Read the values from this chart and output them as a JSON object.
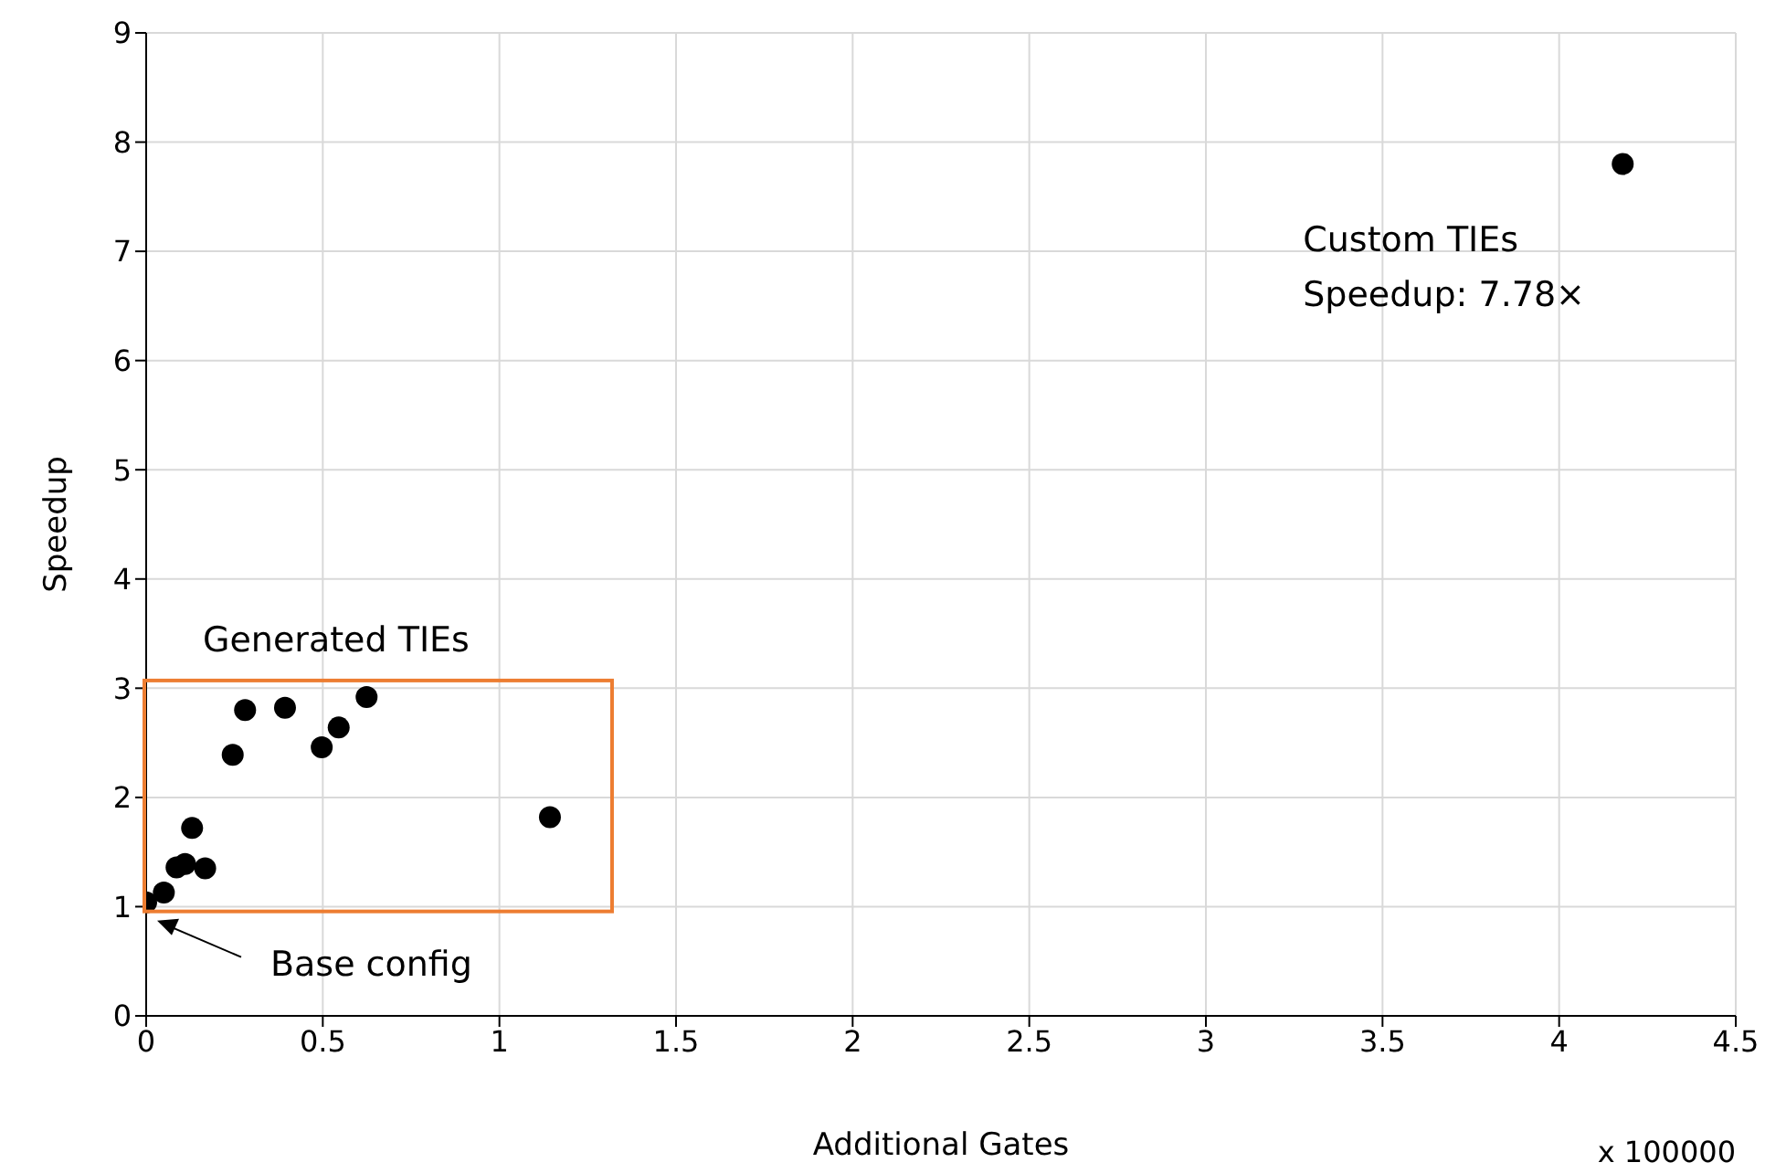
{
  "chart_data": {
    "type": "scatter",
    "xlabel": "Additional Gates",
    "ylabel": "Speedup",
    "xlim": [
      0,
      4.5
    ],
    "ylim": [
      0,
      9
    ],
    "xticks": [
      0,
      0.5,
      1,
      1.5,
      2,
      2.5,
      3,
      3.5,
      4,
      4.5
    ],
    "yticks": [
      0,
      1,
      2,
      3,
      4,
      5,
      6,
      7,
      8,
      9
    ],
    "grid": true,
    "marker": "circle",
    "series": [
      {
        "color": "#000000",
        "x": [
          0,
          0.05,
          0.086,
          0.11,
          0.167,
          0.13,
          0.245,
          0.28,
          0.393,
          0.497,
          0.545,
          0.624,
          1.143
        ],
        "values": [
          1.04,
          1.13,
          1.36,
          1.39,
          1.35,
          1.72,
          2.39,
          2.8,
          2.82,
          2.46,
          2.64,
          2.92,
          1.82
        ]
      },
      {
        "color": "#000000",
        "x": [
          4.18
        ],
        "values": [
          7.8
        ]
      }
    ],
    "annotations": [
      "Generated TIEs",
      "Base config",
      {
        "text": "Custom TIEs\nSpeedup: 7.78×",
        "x": 4.18,
        "y": 7.8
      },
      "x 100000"
    ]
  }
}
